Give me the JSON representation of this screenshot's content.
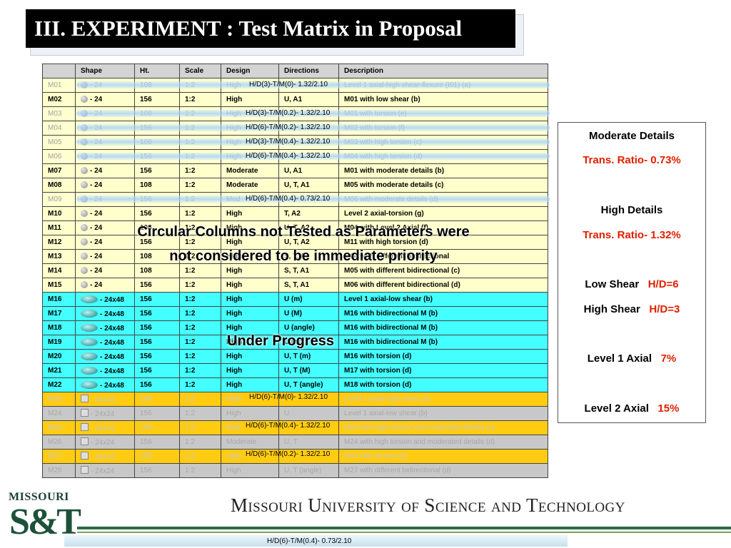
{
  "title": "III. EXPERIMENT : Test Matrix in Proposal",
  "table": {
    "headers": [
      "",
      "Shape",
      "Ht.",
      "Scale",
      "Design",
      "Directions",
      "Description"
    ],
    "rows": [
      {
        "id": "M01",
        "shape": "circle",
        "size": "- 24",
        "ht": "108",
        "scale": "1:2",
        "design": "High",
        "directions": "",
        "description": "Level 1 axial-high shear-flexure (I01) (a)",
        "style": "pale"
      },
      {
        "id": "M02",
        "shape": "circle",
        "size": "- 24",
        "ht": "156",
        "scale": "1:2",
        "design": "High",
        "directions": "U, A1",
        "description": "M01 with low shear (b)",
        "style": "yel"
      },
      {
        "id": "M03",
        "shape": "circle",
        "size": "- 24",
        "ht": "108",
        "scale": "1:2",
        "design": "High",
        "directions": "",
        "description": "M01 with torsion (e)",
        "style": "pale"
      },
      {
        "id": "M04",
        "shape": "circle",
        "size": "- 24",
        "ht": "156",
        "scale": "1:2",
        "design": "High",
        "directions": "",
        "description": "M02 with torsion (f)",
        "style": "pale"
      },
      {
        "id": "M05",
        "shape": "circle",
        "size": "- 24",
        "ht": "108",
        "scale": "1:2",
        "design": "High",
        "directions": "",
        "description": "M03 with high torsion (c)",
        "style": "pale"
      },
      {
        "id": "M06",
        "shape": "circle",
        "size": "- 24",
        "ht": "156",
        "scale": "1:2",
        "design": "High",
        "directions": "",
        "description": "M04 with high torsion (d)",
        "style": "pale"
      },
      {
        "id": "M07",
        "shape": "circle",
        "size": "- 24",
        "ht": "156",
        "scale": "1:2",
        "design": "Moderate",
        "directions": "U, A1",
        "description": "M01 with moderate details (b)",
        "style": "yel"
      },
      {
        "id": "M08",
        "shape": "circle",
        "size": "- 24",
        "ht": "108",
        "scale": "1:2",
        "design": "Moderate",
        "directions": "U, T, A1",
        "description": "M05 with moderate details (c)",
        "style": "yel"
      },
      {
        "id": "M09",
        "shape": "circle",
        "size": "- 24",
        "ht": "156",
        "scale": "1:2",
        "design": "Mod",
        "directions": "",
        "description": "M06 with moderate details (d)",
        "style": "pale"
      },
      {
        "id": "M10",
        "shape": "circle",
        "size": "- 24",
        "ht": "156",
        "scale": "1:2",
        "design": "High",
        "directions": "T, A2",
        "description": "Level 2 axial-torsion (g)",
        "style": "yel"
      },
      {
        "id": "M11",
        "shape": "circle",
        "size": "- 24",
        "ht": "108",
        "scale": "1:2",
        "design": "High",
        "directions": "U, T, A2",
        "description": "M04 with Level 2 Axial (f)",
        "style": "yel"
      },
      {
        "id": "M12",
        "shape": "circle",
        "size": "- 24",
        "ht": "156",
        "scale": "1:2",
        "design": "High",
        "directions": "U, T, A2",
        "description": "M11 with high torsion (d)",
        "style": "yel"
      },
      {
        "id": "M13",
        "shape": "circle",
        "size": "- 24",
        "ht": "108",
        "scale": "1:2",
        "design": "High",
        "directions": "S, T, A1",
        "description": "M04 with different bidirectional",
        "style": "yel"
      },
      {
        "id": "M14",
        "shape": "circle",
        "size": "- 24",
        "ht": "108",
        "scale": "1:2",
        "design": "High",
        "directions": "S, T, A1",
        "description": "M05 with different bidirectional (c)",
        "style": "yel"
      },
      {
        "id": "M15",
        "shape": "circle",
        "size": "- 24",
        "ht": "156",
        "scale": "1:2",
        "design": "High",
        "directions": "S, T, A1",
        "description": "M06 with different bidirectional (d)",
        "style": "yel"
      },
      {
        "id": "M16",
        "shape": "ellipse",
        "size": "- 24x48",
        "ht": "156",
        "scale": "1:2",
        "design": "High",
        "directions": "U (m)",
        "description": "Level 1 axial-low shear (b)",
        "style": "cyan"
      },
      {
        "id": "M17",
        "shape": "ellipse",
        "size": "- 24x48",
        "ht": "156",
        "scale": "1:2",
        "design": "High",
        "directions": "U (M)",
        "description": "M16 with bidirectional M (b)",
        "style": "cyan"
      },
      {
        "id": "M18",
        "shape": "ellipse",
        "size": "- 24x48",
        "ht": "156",
        "scale": "1:2",
        "design": "High",
        "directions": "U (angle)",
        "description": "M16 with bidirectional M (b)",
        "style": "cyan"
      },
      {
        "id": "M19",
        "shape": "ellipse",
        "size": "- 24x48",
        "ht": "156",
        "scale": "1:2",
        "design": "High",
        "directions": "U (m)",
        "description": "M16 with bidirectional M (b)",
        "style": "cyan"
      },
      {
        "id": "M20",
        "shape": "ellipse",
        "size": "- 24x48",
        "ht": "156",
        "scale": "1:2",
        "design": "High",
        "directions": "U, T (m)",
        "description": "M16 with torsion (d)",
        "style": "cyan"
      },
      {
        "id": "M21",
        "shape": "ellipse",
        "size": "- 24x48",
        "ht": "156",
        "scale": "1:2",
        "design": "High",
        "directions": "U, T (M)",
        "description": "M17 with torsion (d)",
        "style": "cyan"
      },
      {
        "id": "M22",
        "shape": "ellipse",
        "size": "- 24x48",
        "ht": "156",
        "scale": "1:2",
        "design": "High",
        "directions": "U, T (angle)",
        "description": "M18 with torsion (d)",
        "style": "cyan"
      },
      {
        "id": "M23",
        "shape": "square",
        "size": "- 24x24",
        "ht": "108",
        "scale": "1:2",
        "design": "High",
        "directions": "",
        "description": "Level 1 axial-high shear (a)",
        "style": "gold"
      },
      {
        "id": "M24",
        "shape": "square",
        "size": "- 24x24",
        "ht": "156",
        "scale": "1:2",
        "design": "High",
        "directions": "U",
        "description": "Level 1 axial-low shear (b)",
        "style": "gray"
      },
      {
        "id": "M25",
        "shape": "square",
        "size": "- 24x24",
        "ht": "108",
        "scale": "1:2",
        "design": "Mod",
        "directions": "",
        "description": "M23 with high torsion and moderated details (c)",
        "style": "gold"
      },
      {
        "id": "M26",
        "shape": "square",
        "size": "- 24x24",
        "ht": "156",
        "scale": "1:2",
        "design": "Moderate",
        "directions": "U, T",
        "description": "M24 with high torsion and moderated details (d)",
        "style": "gray"
      },
      {
        "id": "M27",
        "shape": "square",
        "size": "- 24x24",
        "ht": "156",
        "scale": "1:2",
        "design": "High",
        "directions": "",
        "description": "M23 with torsion (d)",
        "style": "gold"
      },
      {
        "id": "M28",
        "shape": "square",
        "size": "- 24x24",
        "ht": "156",
        "scale": "1:2",
        "design": "High",
        "directions": "U, T (angle)",
        "description": "M27 with different bidirectional (d)",
        "style": "gray"
      }
    ]
  },
  "band_labels": [
    "H/D(3)-T/M(0)- 1.32/2.10",
    "H/D(3)-T/M(0.2)- 1.32/2.10",
    "H/D(6)-T/M(0.2)- 1.32/2.10",
    "H/D(3)-T/M(0.4)- 1.32/2.10",
    "H/D(6)-T/M(0.4)- 1.32/2.10",
    "H/D(6)-T/M(0.4)- 0.73/2.10",
    "H/D(6)-T/M(0)- 1.32/2.10",
    "H/D(6)-T/M(0.4)- 1.32/2.10",
    "H/D(6)-T/M(0.2)- 1.32/2.10"
  ],
  "overlay": {
    "circular_line1": "Circular Columns not Tested  as Parameters were",
    "circular_line2": "not considered to be  immediate priority",
    "progress": "Under Progress"
  },
  "info_panel": {
    "moderate_title": "Moderate Details",
    "moderate_ratio": "Trans. Ratio- 0.73%",
    "high_title": "High Details",
    "high_ratio": "Trans. Ratio- 1.32%",
    "low_shear_label": "Low Shear",
    "low_shear_value": "H/D=6",
    "high_shear_label": "High Shear",
    "high_shear_value": "H/D=3",
    "level1_label": "Level 1 Axial",
    "level1_value": "7%",
    "level2_label": "Level 2 Axial",
    "level2_value": "15%"
  },
  "footer": {
    "logo_top": "MISSOURI",
    "logo_main": "S&T",
    "university": "Missouri University of Science and Technology",
    "bar_label": "H/D(6)-T/M(0.4)- 0.73/2.10"
  },
  "colors": {
    "yellow_row": "#ffffcc",
    "cyan_row": "#44ffff",
    "gold_row": "#ffcc11",
    "gray_row": "#c8c8c8",
    "accent_red": "#e02000",
    "brand_green": "#1e5139"
  }
}
